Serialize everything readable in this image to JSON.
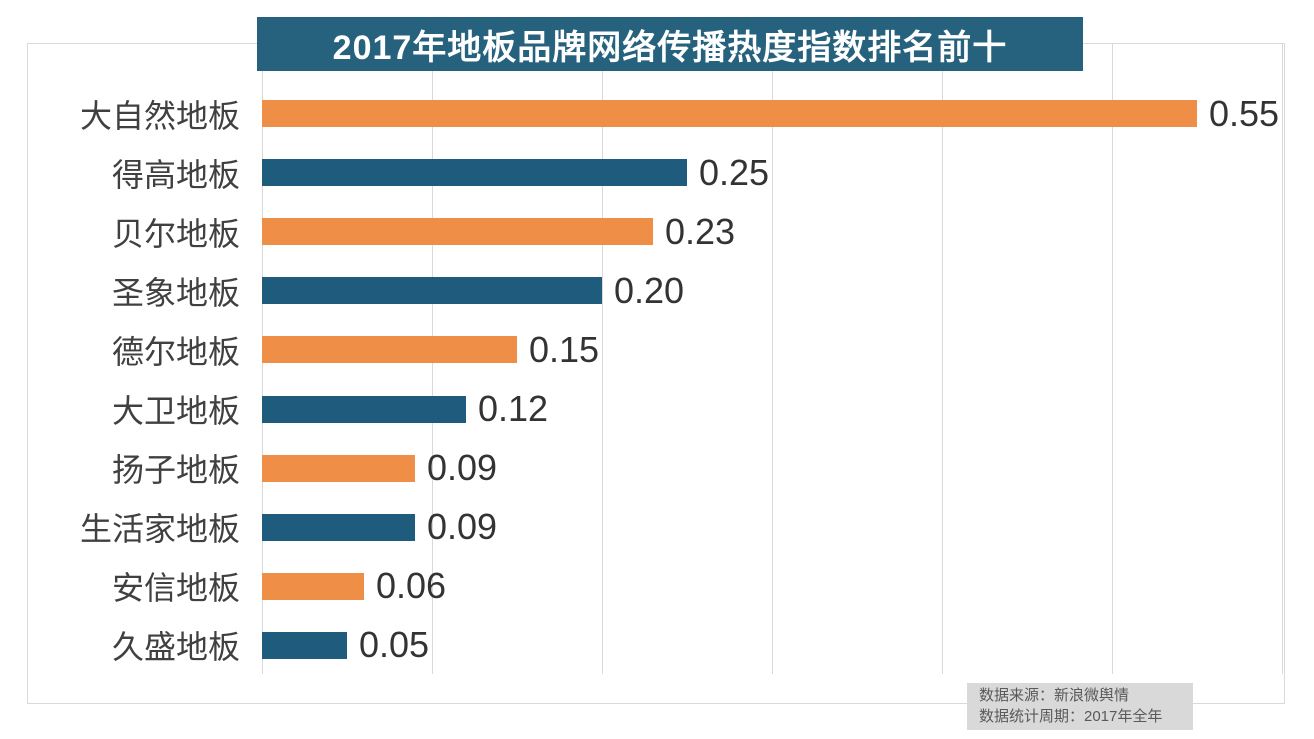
{
  "title": "2017年地板品牌网络传播热度指数排名前十",
  "source_note": {
    "line1": "数据来源：新浪微舆情",
    "line2": "数据统计周期：2017年全年"
  },
  "colors": {
    "orange": "#EF8E47",
    "blue": "#1F5B7D",
    "banner": "#26617E",
    "grid": "#D9D9D9",
    "label": "#404040",
    "value": "#333333",
    "noteBg": "#D9D9D9",
    "noteText": "#595959"
  },
  "chart_data": {
    "type": "bar",
    "orientation": "horizontal",
    "title": "2017年地板品牌网络传播热度指数排名前十",
    "categories": [
      "大自然地板",
      "得高地板",
      "贝尔地板",
      "圣象地板",
      "德尔地板",
      "大卫地板",
      "扬子地板",
      "生活家地板",
      "安信地板",
      "久盛地板"
    ],
    "values": [
      0.55,
      0.25,
      0.23,
      0.2,
      0.15,
      0.12,
      0.09,
      0.09,
      0.06,
      0.05
    ],
    "value_labels": [
      "0.55",
      "0.25",
      "0.23",
      "0.20",
      "0.15",
      "0.12",
      "0.09",
      "0.09",
      "0.06",
      "0.05"
    ],
    "xlim": [
      0,
      0.6
    ],
    "gridlines": [
      0,
      0.1,
      0.2,
      0.3,
      0.4,
      0.5,
      0.6
    ],
    "bar_color_pattern": [
      "#EF8E47",
      "#1F5B7D"
    ],
    "grid_on": true,
    "legend": false,
    "xlabel": "",
    "ylabel": ""
  }
}
